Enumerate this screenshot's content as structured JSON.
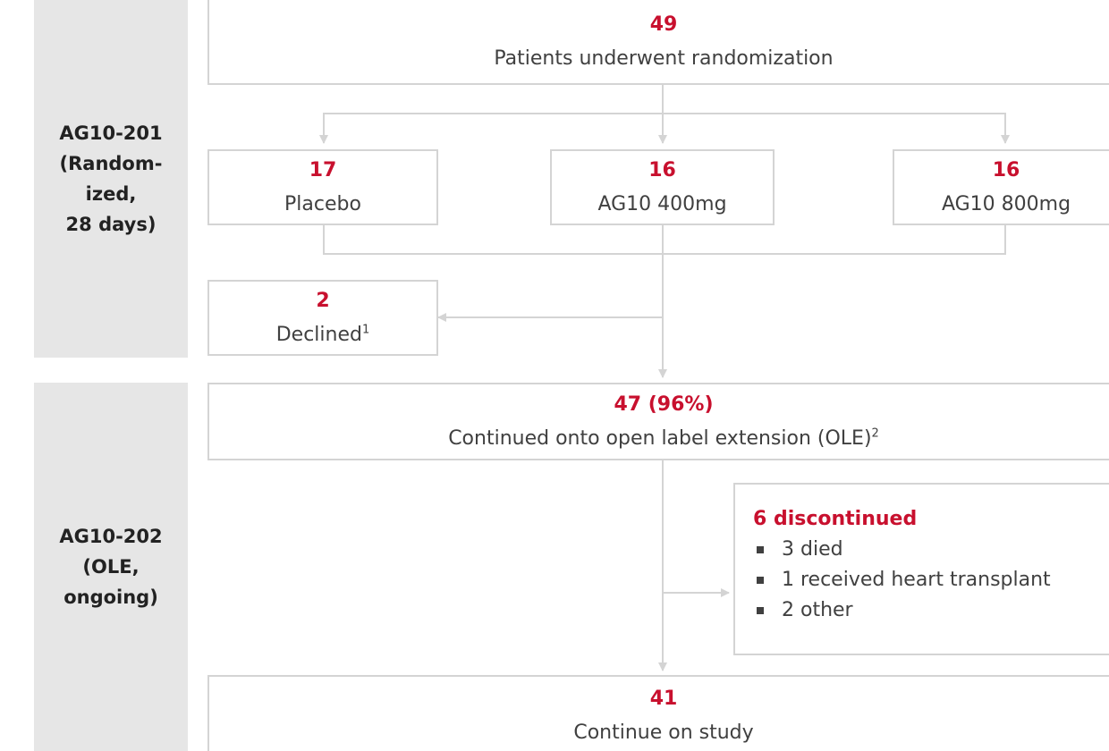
{
  "sections": [
    {
      "lines": [
        "AG10-201",
        "(Random-",
        "ized,",
        "28 days)"
      ]
    },
    {
      "lines": [
        "AG10-202",
        "(OLE,",
        "ongoing)"
      ]
    }
  ],
  "boxes": [
    {
      "count": "49",
      "label": "Patients underwent randomization"
    },
    {
      "count": "17",
      "label": "Placebo"
    },
    {
      "count": "16",
      "label": "AG10 400mg"
    },
    {
      "count": "16",
      "label": "AG10 800mg"
    },
    {
      "count": "2",
      "label": "Declined",
      "footnote": "1"
    },
    {
      "count": "47 (96%)",
      "label": "Continued onto open label extension (OLE)",
      "footnote": "2"
    },
    {
      "count": "41",
      "label": "Continue on study"
    }
  ],
  "discontinued": {
    "title": "6 discontinued",
    "items": [
      "3 died",
      "1 received heart transplant",
      "2 other"
    ]
  }
}
